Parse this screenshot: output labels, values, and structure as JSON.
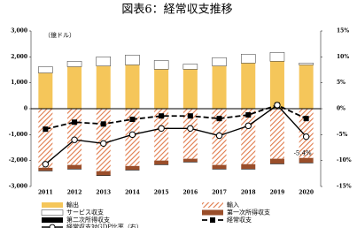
{
  "chart_data": {
    "type": "bar",
    "title": "図表6：経常収支推移",
    "y_label": "（億ドル）",
    "categories": [
      "2011",
      "2012",
      "2013",
      "2014",
      "2015",
      "2016",
      "2017",
      "2018",
      "2019",
      "2020"
    ],
    "series": [
      {
        "name": "輸出",
        "color": "#f5c65a",
        "values": [
          1380,
          1620,
          1650,
          1690,
          1520,
          1520,
          1650,
          1760,
          1830,
          1690
        ]
      },
      {
        "name": "輸入",
        "color": "#e07a4a",
        "pattern": "hatch",
        "values": [
          -2280,
          -2170,
          -2410,
          -2210,
          -2000,
          -1930,
          -2170,
          -2140,
          -1930,
          -1900
        ]
      },
      {
        "name": "サービス収支",
        "color": "#ffffff",
        "values": [
          240,
          210,
          350,
          380,
          340,
          200,
          320,
          340,
          340,
          70
        ]
      },
      {
        "name": "第一次所得収支",
        "color": "#9a4e2a",
        "values": [
          -110,
          -150,
          -160,
          -150,
          -150,
          -120,
          -150,
          -180,
          -190,
          -180
        ]
      },
      {
        "name": "第二次所得収支",
        "color": "#000000",
        "values": [
          -20,
          -20,
          -20,
          -20,
          -20,
          -20,
          -20,
          -20,
          -20,
          -20
        ]
      },
      {
        "name": "経常収支",
        "type": "line",
        "dashed": true,
        "marker": "square",
        "color": "#000000",
        "values": [
          -790,
          -520,
          -590,
          -410,
          -280,
          -280,
          -380,
          -240,
          140,
          -380
        ]
      },
      {
        "name": "経常収支対GDP比率（右）",
        "type": "line",
        "axis": "y2",
        "marker": "circle",
        "color": "#000000",
        "values": [
          -10.7,
          -6.0,
          -6.7,
          -5.0,
          -3.8,
          -3.8,
          -5.2,
          -3.3,
          0.7,
          -5.4
        ],
        "value_labels": [
          null,
          null,
          null,
          null,
          null,
          null,
          null,
          null,
          null,
          "-5.4%"
        ]
      }
    ],
    "ylim": [
      -3000,
      3000
    ],
    "yticks": [
      {
        "value": 3000,
        "label": "3,000"
      },
      {
        "value": 2000,
        "label": "2,000"
      },
      {
        "value": 1000,
        "label": "1,000"
      },
      0,
      {
        "value": -1000,
        "label": "-1,000"
      },
      {
        "value": -2000,
        "label": "-2,000"
      },
      {
        "value": -3000,
        "label": "-3,000"
      }
    ],
    "y2lim": [
      -15,
      15
    ],
    "y2ticks": [
      {
        "value": 15,
        "label": "15%"
      },
      {
        "value": 10,
        "label": "10%"
      },
      {
        "value": 5,
        "label": "5%"
      },
      {
        "value": 0,
        "label": "0%"
      },
      {
        "value": -5,
        "label": "-5%"
      },
      {
        "value": -10,
        "label": "-10%"
      },
      {
        "value": -15,
        "label": "-15%"
      }
    ]
  }
}
